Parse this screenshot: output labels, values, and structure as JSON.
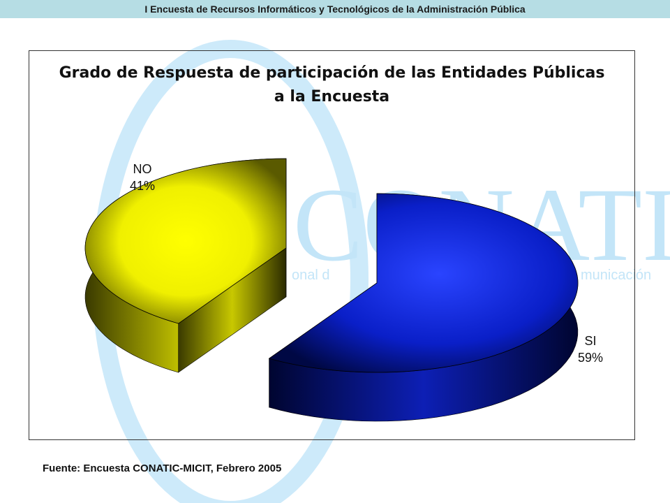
{
  "header": {
    "title": "I Encuesta de Recursos Informáticos y Tecnológicos de la Administración Pública"
  },
  "watermark": {
    "text": "CONATIC",
    "subtitle_left": "onal d",
    "subtitle_right": "municación"
  },
  "chart_data": {
    "type": "pie",
    "style": "3d-exploded",
    "title_lines": [
      "Grado de Respuesta de participación de las Entidades Públicas",
      "a la Encuesta"
    ],
    "slices": [
      {
        "label": "SI",
        "value": 59,
        "value_label": "59%",
        "color": "#0a1fc8"
      },
      {
        "label": "NO",
        "value": 41,
        "value_label": "41%",
        "color": "#f0f000"
      }
    ]
  },
  "source": "Fuente: Encuesta CONATIC-MICIT, Febrero 2005",
  "colors": {
    "header_bg": "#b6dde4",
    "watermark": "#bfe3f7"
  }
}
